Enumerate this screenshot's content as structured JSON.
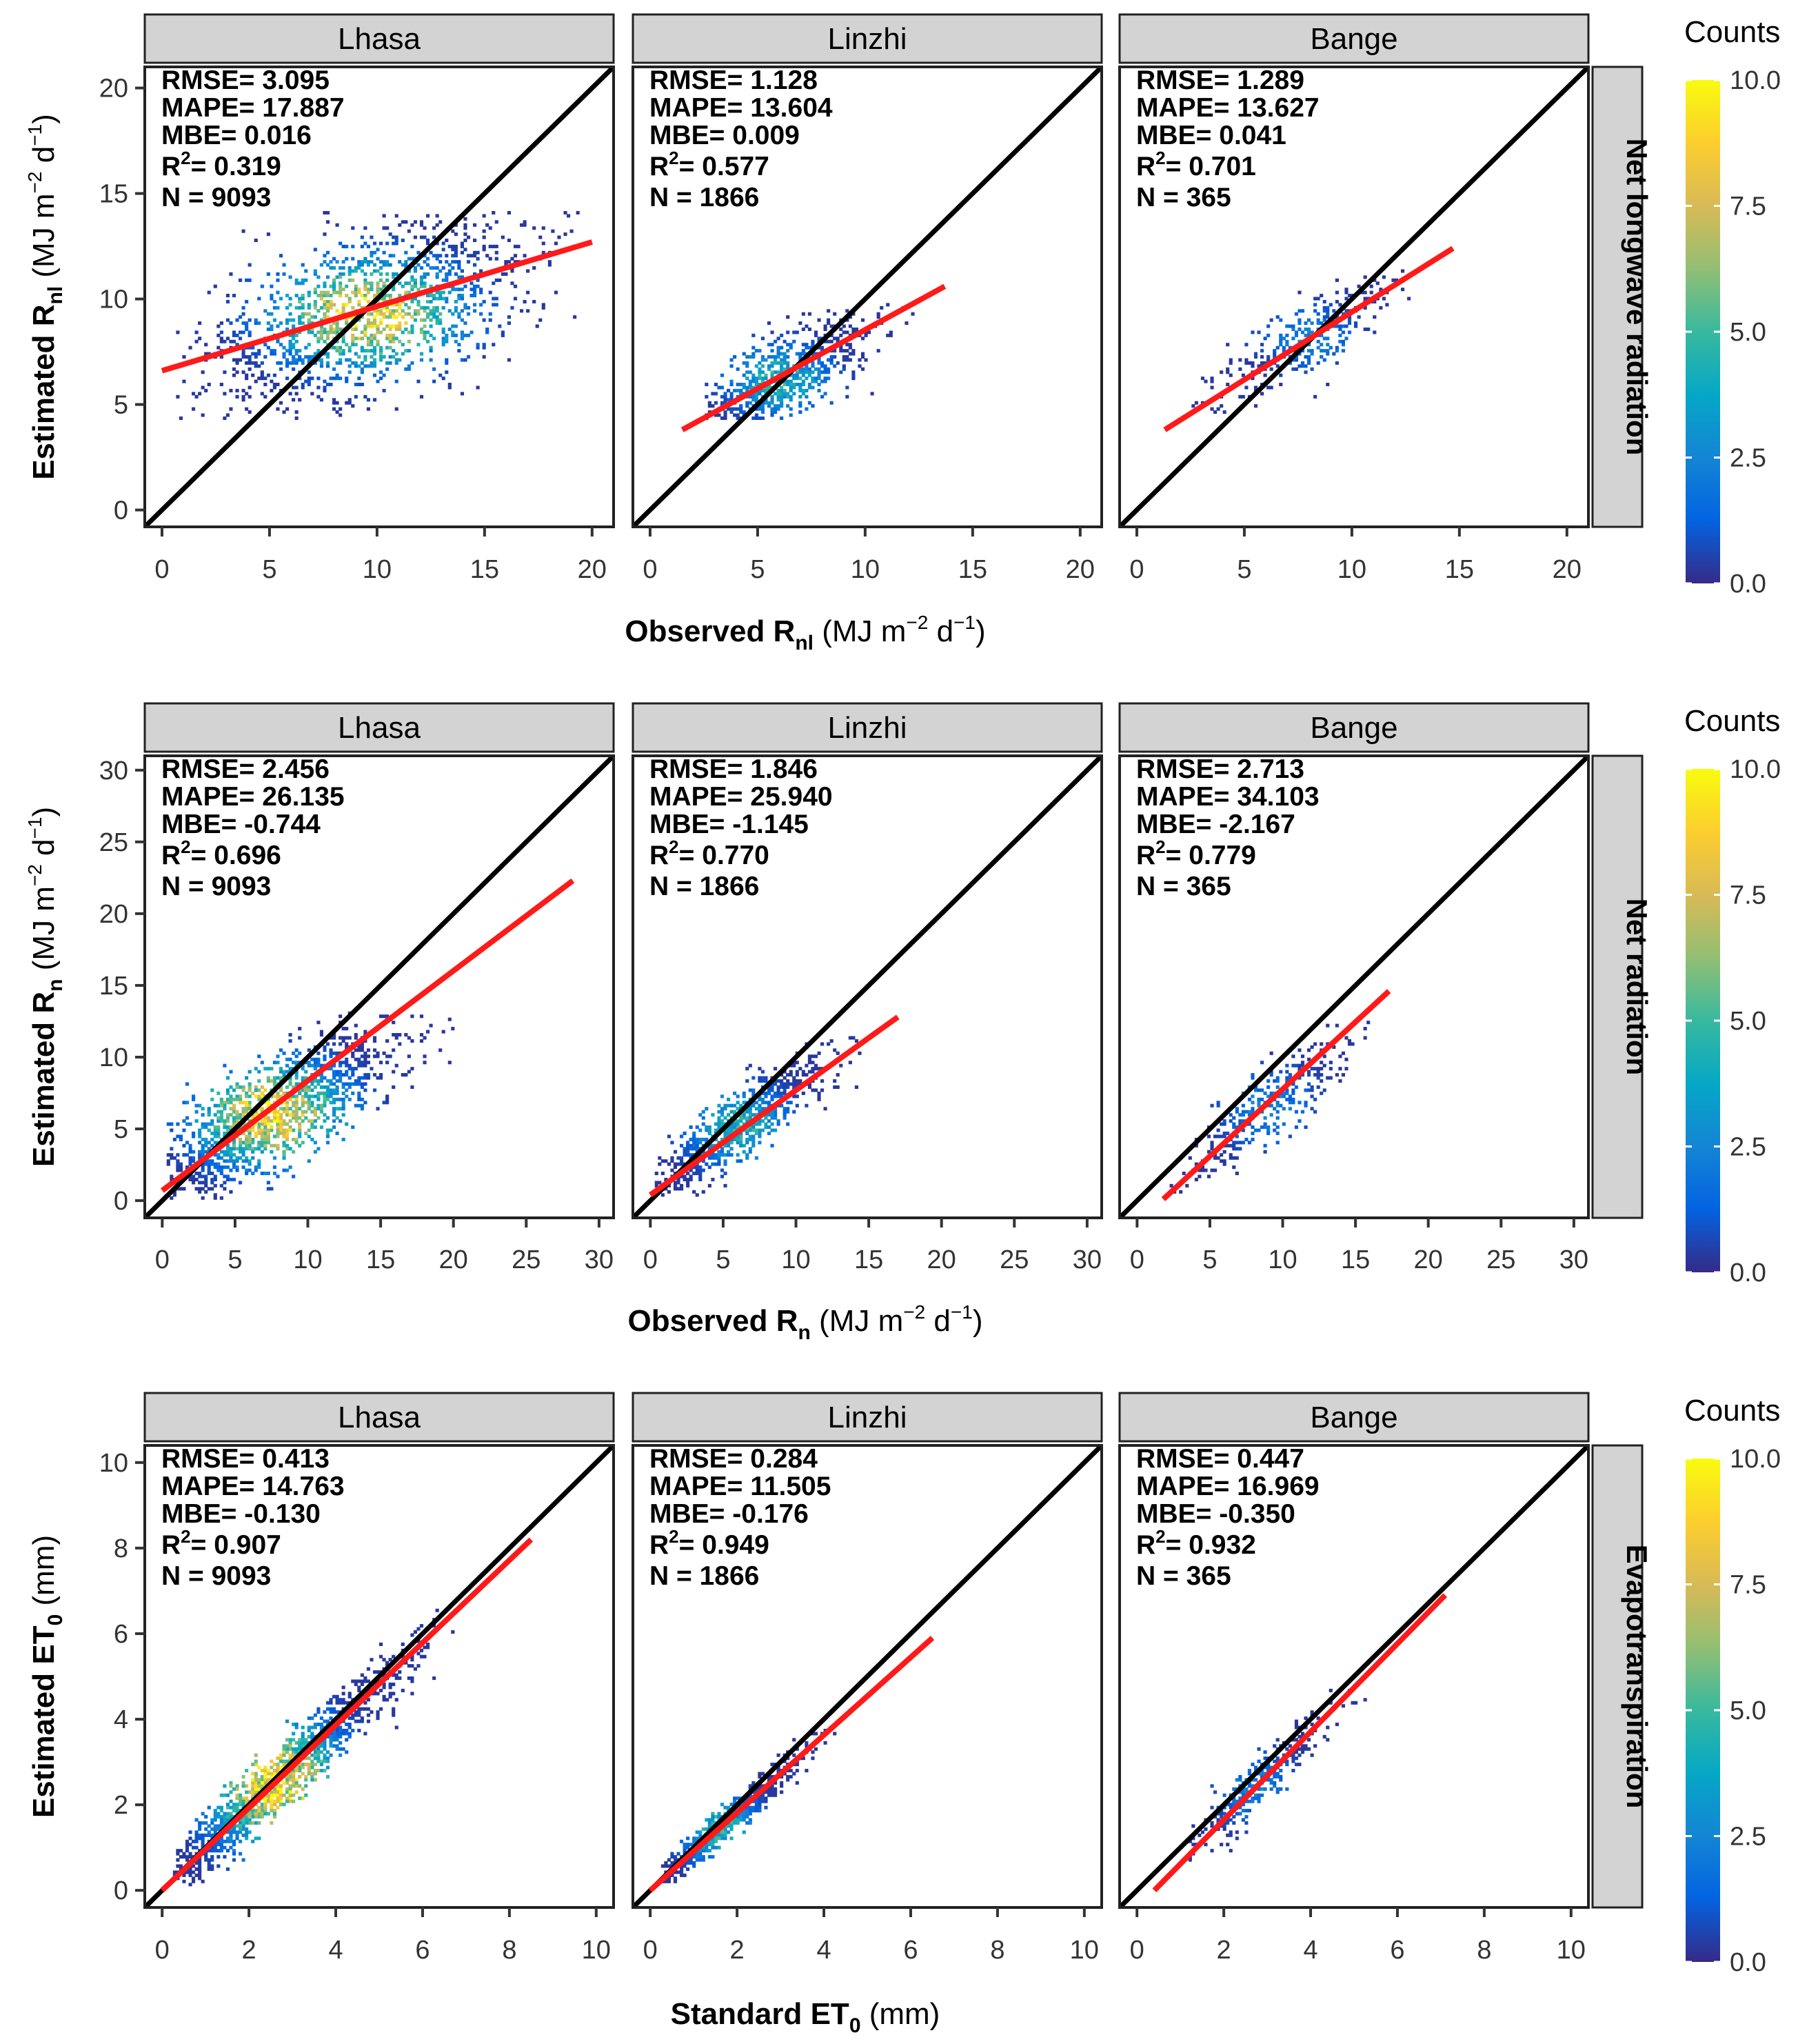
{
  "colors": {
    "one_to_one_line": "#000000",
    "fit_line": "#ff1a1a",
    "strip_fill": "#d3d3d3",
    "colorscale": [
      "#352a87",
      "#0363e1",
      "#1485d4",
      "#06a7c6",
      "#38b99e",
      "#92bf73",
      "#d9ba56",
      "#fcce2e",
      "#f9fb0e"
    ]
  },
  "colorbar": {
    "title": "Counts",
    "ticks": [
      "0.0",
      "2.5",
      "5.0",
      "7.5",
      "10.0"
    ],
    "min": 0,
    "max": 10
  },
  "chart_data": [
    {
      "type": "heatmap",
      "row_label": "Net longwave radiation",
      "xlabel": "Observed R_nl (MJ m^-2 d^-1)",
      "ylabel": "Estimated R_nl (MJ m^-2 d^-1)",
      "xlabel_parts": {
        "main": "Observed R",
        "sub": "nl",
        "units": "(MJ m",
        "exp1": "−2",
        "d": " d",
        "exp2": "−1",
        "close": ")"
      },
      "ylabel_parts": {
        "main": "Estimated R",
        "sub": "nl",
        "units": "(MJ m",
        "exp1": "−2",
        "d": " d",
        "exp2": "−1",
        "close": ")"
      },
      "xlim": [
        -0.8,
        21
      ],
      "ylim": [
        -0.8,
        21
      ],
      "xticks": [
        0,
        5,
        10,
        15,
        20
      ],
      "yticks": [
        0,
        5,
        10,
        15,
        20
      ],
      "panels": [
        {
          "site": "Lhasa",
          "stats": [
            "RMSE= 3.095",
            "MAPE= 17.887",
            "MBE= 0.016"
          ],
          "r2": "0.319",
          "n": "N = 9093",
          "fit": {
            "x": [
              0,
              20
            ],
            "y": [
              6.6,
              12.7
            ]
          },
          "density": {
            "cx": 9.5,
            "cy": 9.3,
            "sx": 3.8,
            "sy": 2.2,
            "rho": 0.55,
            "xmin": 0.5,
            "xmax": 19.9,
            "ymin": 4.2,
            "ymax": 14.2,
            "npts": 1500,
            "peak": 10
          }
        },
        {
          "site": "Linzhi",
          "stats": [
            "RMSE=  1.128",
            "MAPE= 13.604",
            "MBE= 0.009"
          ],
          "r2": "0.577",
          "n": "N = 1866",
          "fit": {
            "x": [
              1.5,
              13.7
            ],
            "y": [
              3.8,
              10.6
            ]
          },
          "density": {
            "cx": 6.0,
            "cy": 6.2,
            "sx": 2.2,
            "sy": 1.5,
            "rho": 0.75,
            "xmin": 2.5,
            "xmax": 12.5,
            "ymin": 4.3,
            "ymax": 9.8,
            "npts": 750,
            "peak": 5
          }
        },
        {
          "site": "Bange",
          "stats": [
            "RMSE=  1.289",
            "MAPE= 13.627",
            "MBE= 0.041"
          ],
          "r2": "0.701",
          "n": "N = 365",
          "fit": {
            "x": [
              1.3,
              14.7
            ],
            "y": [
              3.8,
              12.4
            ]
          },
          "density": {
            "cx": 8.0,
            "cy": 8.2,
            "sx": 2.3,
            "sy": 1.5,
            "rho": 0.83,
            "xmin": 2.5,
            "xmax": 13.5,
            "ymin": 4.5,
            "ymax": 11.5,
            "npts": 320,
            "peak": 2.5
          }
        }
      ]
    },
    {
      "type": "heatmap",
      "row_label": "Net radiation",
      "xlabel": "Observed R_n (MJ m^-2 d^-1)",
      "ylabel": "Estimated R_n (MJ m^-2 d^-1)",
      "xlabel_parts": {
        "main": "Observed R",
        "sub": "n",
        "units": "(MJ m",
        "exp1": "−2",
        "d": " d",
        "exp2": "−1",
        "close": ")"
      },
      "ylabel_parts": {
        "main": "Estimated R",
        "sub": "n",
        "units": "(MJ m",
        "exp1": "−2",
        "d": " d",
        "exp2": "−1",
        "close": ")"
      },
      "xlim": [
        -1.2,
        31
      ],
      "ylim": [
        -1.2,
        31
      ],
      "xticks": [
        0,
        5,
        10,
        15,
        20,
        25,
        30
      ],
      "yticks": [
        0,
        5,
        10,
        15,
        20,
        25,
        30
      ],
      "panels": [
        {
          "site": "Lhasa",
          "stats": [
            "RMSE= 2.456",
            "MAPE= 26.135",
            "MBE= -0.744"
          ],
          "r2": "0.696",
          "n": "N = 9093",
          "fit": {
            "x": [
              0,
              28.2
            ],
            "y": [
              0.7,
              22.3
            ]
          },
          "density": {
            "cx": 7.5,
            "cy": 6.0,
            "sx": 4.5,
            "sy": 3.2,
            "rho": 0.8,
            "xmin": 0.3,
            "xmax": 20.5,
            "ymin": 0.2,
            "ymax": 13.0,
            "npts": 1500,
            "peak": 10
          }
        },
        {
          "site": "Linzhi",
          "stats": [
            "RMSE=  1.846",
            "MAPE= 25.940",
            "MBE= -1.145"
          ],
          "r2": "0.770",
          "n": "N = 1866",
          "fit": {
            "x": [
              0,
              17
            ],
            "y": [
              0.4,
              12.8
            ]
          },
          "density": {
            "cx": 6.0,
            "cy": 5.2,
            "sx": 3.2,
            "sy": 2.6,
            "rho": 0.88,
            "xmin": 0.3,
            "xmax": 14.5,
            "ymin": 0.2,
            "ymax": 12.0,
            "npts": 800,
            "peak": 5
          }
        },
        {
          "site": "Bange",
          "stats": [
            "RMSE=  2.713",
            "MAPE= 34.103",
            "MBE= -2.167"
          ],
          "r2": "0.779",
          "n": "N = 365",
          "fit": {
            "x": [
              1.8,
              17.3
            ],
            "y": [
              0.1,
              14.6
            ]
          },
          "density": {
            "cx": 9.0,
            "cy": 6.5,
            "sx": 3.3,
            "sy": 2.8,
            "rho": 0.88,
            "xmin": 2.0,
            "xmax": 16.0,
            "ymin": 0.5,
            "ymax": 12.5,
            "npts": 330,
            "peak": 2.5
          }
        }
      ]
    },
    {
      "type": "heatmap",
      "row_label": "Evapotranspiration",
      "xlabel": "Standard ET_0 (mm)",
      "ylabel": "Estimated ET_0 (mm)",
      "xlabel_parts": {
        "main": "Standard ET",
        "sub": "0",
        "units": "(mm)",
        "exp1": "",
        "d": "",
        "exp2": "",
        "close": ""
      },
      "ylabel_parts": {
        "main": "Estimated ET",
        "sub": "0",
        "units": "(mm)",
        "exp1": "",
        "d": "",
        "exp2": "",
        "close": ""
      },
      "xlim": [
        -0.4,
        10.4
      ],
      "ylim": [
        -0.4,
        10.4
      ],
      "xticks": [
        0,
        2,
        4,
        6,
        8,
        10
      ],
      "yticks": [
        0,
        2,
        4,
        6,
        8,
        10
      ],
      "panels": [
        {
          "site": "Lhasa",
          "stats": [
            "RMSE= 0.413",
            "MAPE= 14.763",
            "MBE= -0.130"
          ],
          "r2": "0.907",
          "n": "N = 9093",
          "fit": {
            "x": [
              0,
              8.5
            ],
            "y": [
              0.0,
              8.2
            ]
          },
          "density": {
            "cx": 2.6,
            "cy": 2.5,
            "sx": 1.4,
            "sy": 1.35,
            "rho": 0.96,
            "xmin": 0.3,
            "xmax": 7.2,
            "ymin": 0.1,
            "ymax": 7.3,
            "npts": 1500,
            "peak": 10
          }
        },
        {
          "site": "Linzhi",
          "stats": [
            "RMSE=  0.284",
            "MAPE= 11.505",
            "MBE= -0.176"
          ],
          "r2": "0.949",
          "n": "N = 1866",
          "fit": {
            "x": [
              0,
              6.5
            ],
            "y": [
              0.0,
              5.9
            ]
          },
          "density": {
            "cx": 1.6,
            "cy": 1.45,
            "sx": 0.85,
            "sy": 0.8,
            "rho": 0.97,
            "xmin": 0.3,
            "xmax": 5.8,
            "ymin": 0.2,
            "ymax": 5.5,
            "npts": 700,
            "peak": 5
          }
        },
        {
          "site": "Bange",
          "stats": [
            "RMSE=  0.447",
            "MAPE= 16.969",
            "MBE= -0.350"
          ],
          "r2": "0.932",
          "n": "N = 365",
          "fit": {
            "x": [
              0.4,
              7.1
            ],
            "y": [
              0.0,
              6.9
            ]
          },
          "density": {
            "cx": 2.7,
            "cy": 2.4,
            "sx": 0.9,
            "sy": 0.9,
            "rho": 0.93,
            "xmin": 1.2,
            "xmax": 6.2,
            "ymin": 0.6,
            "ymax": 6.0,
            "npts": 330,
            "peak": 2.5
          }
        }
      ]
    }
  ]
}
